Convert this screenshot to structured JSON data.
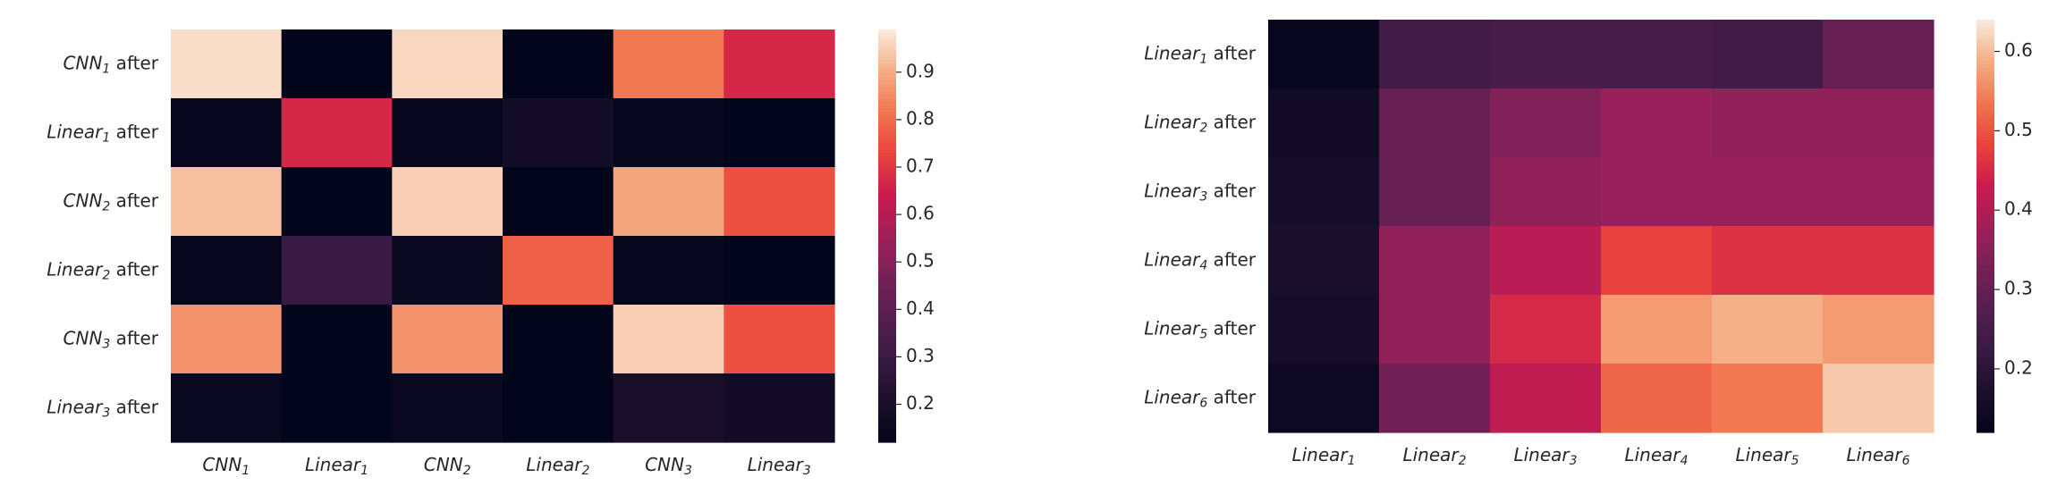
{
  "chart_data": [
    {
      "type": "heatmap",
      "title": "",
      "x_labels": [
        {
          "name": "CNN",
          "sub": "1",
          "suffix": ""
        },
        {
          "name": "Linear",
          "sub": "1",
          "suffix": ""
        },
        {
          "name": "CNN",
          "sub": "2",
          "suffix": ""
        },
        {
          "name": "Linear",
          "sub": "2",
          "suffix": ""
        },
        {
          "name": "CNN",
          "sub": "3",
          "suffix": ""
        },
        {
          "name": "Linear",
          "sub": "3",
          "suffix": ""
        }
      ],
      "y_labels": [
        {
          "name": "CNN",
          "sub": "1",
          "suffix": " after"
        },
        {
          "name": "Linear",
          "sub": "1",
          "suffix": " after"
        },
        {
          "name": "CNN",
          "sub": "2",
          "suffix": " after"
        },
        {
          "name": "Linear",
          "sub": "2",
          "suffix": " after"
        },
        {
          "name": "CNN",
          "sub": "3",
          "suffix": " after"
        },
        {
          "name": "Linear",
          "sub": "3",
          "suffix": " after"
        }
      ],
      "values": [
        [
          0.97,
          0.12,
          0.96,
          0.12,
          0.82,
          0.67
        ],
        [
          0.13,
          0.67,
          0.13,
          0.18,
          0.13,
          0.12
        ],
        [
          0.93,
          0.12,
          0.95,
          0.12,
          0.89,
          0.75
        ],
        [
          0.13,
          0.3,
          0.14,
          0.78,
          0.13,
          0.12
        ],
        [
          0.86,
          0.12,
          0.86,
          0.12,
          0.95,
          0.75
        ],
        [
          0.14,
          0.12,
          0.14,
          0.12,
          0.2,
          0.17
        ]
      ],
      "colorbar": {
        "vmin": 0.12,
        "vmax": 0.99,
        "ticks": [
          "0.2",
          "0.3",
          "0.4",
          "0.5",
          "0.6",
          "0.7",
          "0.8",
          "0.9"
        ]
      },
      "colormap": "rocket",
      "grid": false
    },
    {
      "type": "heatmap",
      "title": "",
      "x_labels": [
        {
          "name": "Linear",
          "sub": "1",
          "suffix": ""
        },
        {
          "name": "Linear",
          "sub": "2",
          "suffix": ""
        },
        {
          "name": "Linear",
          "sub": "3",
          "suffix": ""
        },
        {
          "name": "Linear",
          "sub": "4",
          "suffix": ""
        },
        {
          "name": "Linear",
          "sub": "5",
          "suffix": ""
        },
        {
          "name": "Linear",
          "sub": "6",
          "suffix": ""
        }
      ],
      "y_labels": [
        {
          "name": "Linear",
          "sub": "1",
          "suffix": " after"
        },
        {
          "name": "Linear",
          "sub": "2",
          "suffix": " after"
        },
        {
          "name": "Linear",
          "sub": "3",
          "suffix": " after"
        },
        {
          "name": "Linear",
          "sub": "4",
          "suffix": " after"
        },
        {
          "name": "Linear",
          "sub": "5",
          "suffix": " after"
        },
        {
          "name": "Linear",
          "sub": "6",
          "suffix": " after"
        }
      ],
      "values": [
        [
          0.13,
          0.24,
          0.25,
          0.25,
          0.24,
          0.3
        ],
        [
          0.15,
          0.3,
          0.34,
          0.37,
          0.36,
          0.36
        ],
        [
          0.16,
          0.3,
          0.36,
          0.37,
          0.37,
          0.37
        ],
        [
          0.17,
          0.36,
          0.41,
          0.48,
          0.46,
          0.46
        ],
        [
          0.16,
          0.36,
          0.45,
          0.57,
          0.59,
          0.57
        ],
        [
          0.14,
          0.32,
          0.42,
          0.52,
          0.54,
          0.61
        ]
      ],
      "colorbar": {
        "vmin": 0.12,
        "vmax": 0.64,
        "ticks": [
          "0.2",
          "0.3",
          "0.4",
          "0.5",
          "0.6"
        ]
      },
      "colormap": "rocket",
      "grid": false
    }
  ]
}
